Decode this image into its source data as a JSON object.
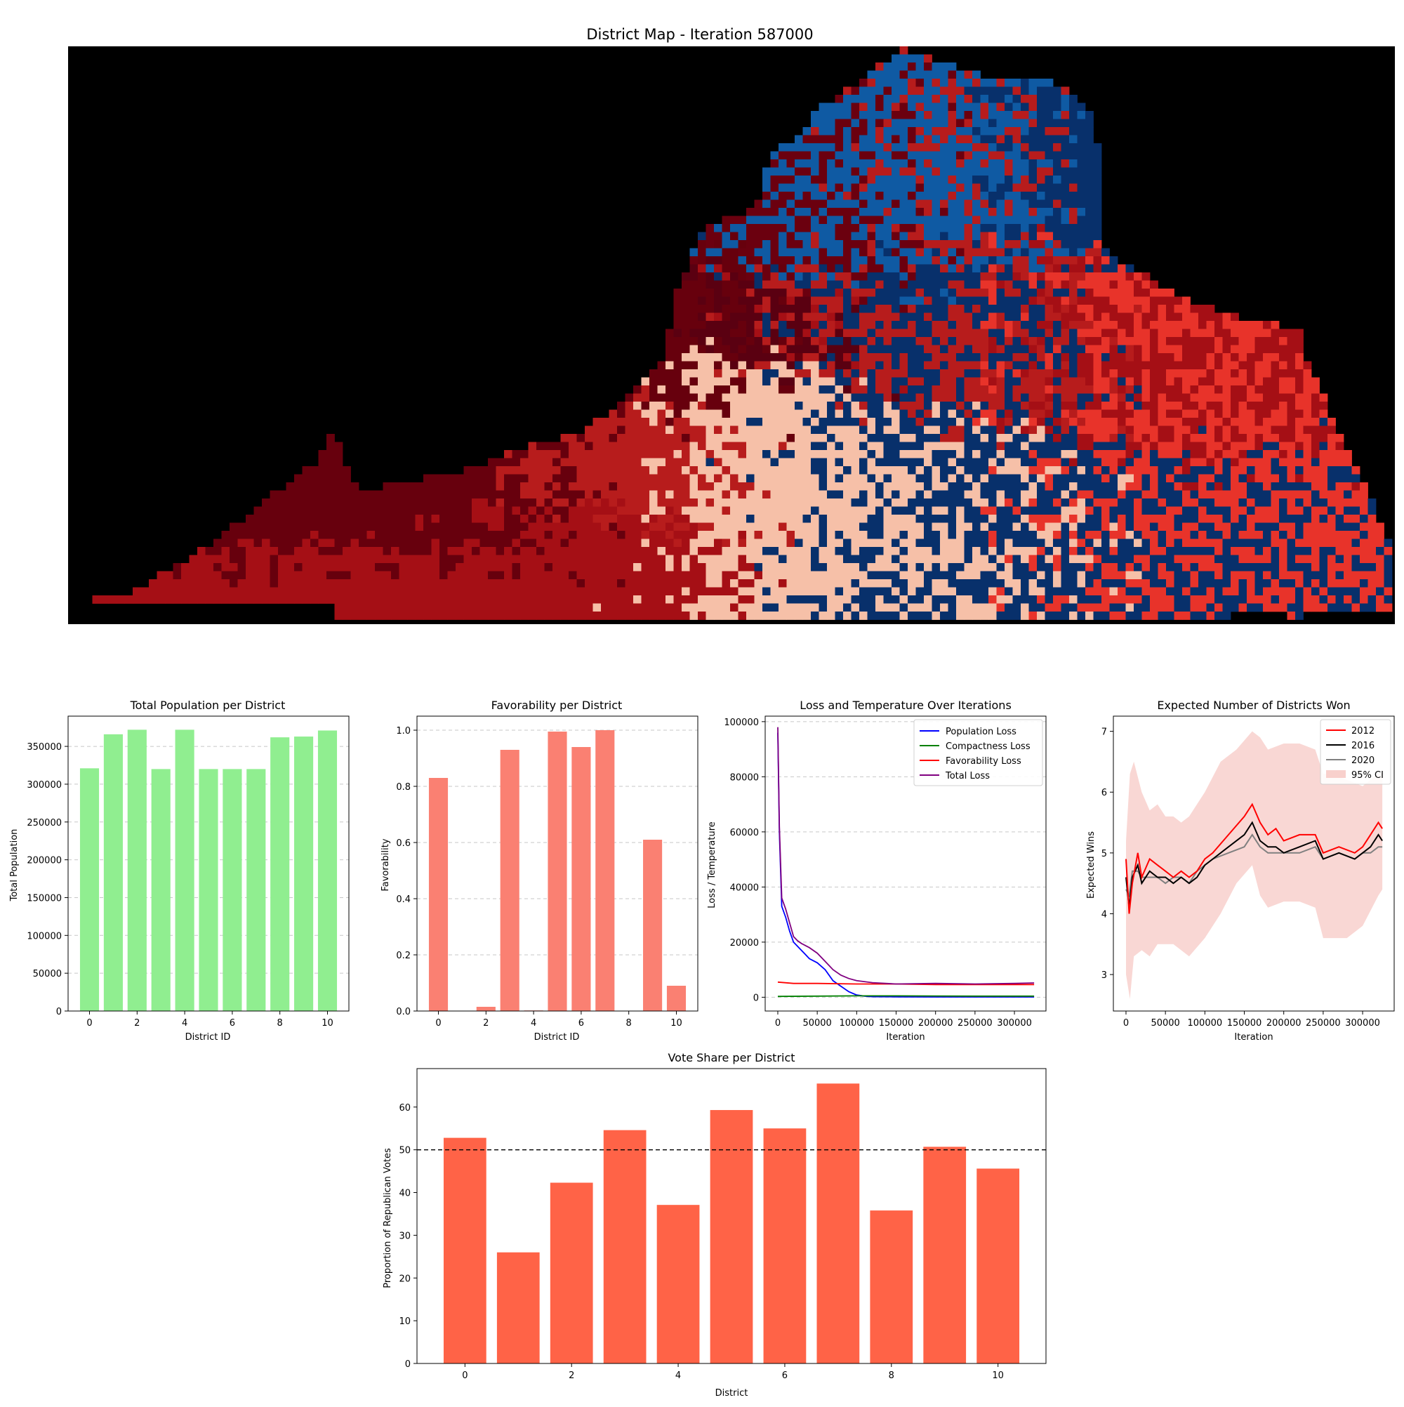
{
  "chart_data": [
    {
      "id": "map",
      "type": "heatmap",
      "title": "District Map - Iteration 587000",
      "district_colors": [
        "#67000d",
        "#a50f15",
        "#f6c0a8",
        "#08306b",
        "#0f5aa3",
        "#e8332a",
        "#6b000f",
        "#b71c1c",
        "#08306b",
        "#5a0011",
        "#8e0d16"
      ]
    },
    {
      "id": "population",
      "type": "bar",
      "title": "Total Population per District",
      "xlabel": "District ID",
      "ylabel": "Total Population",
      "categories": [
        0,
        1,
        2,
        3,
        4,
        5,
        6,
        7,
        8,
        9,
        10
      ],
      "values": [
        321000,
        366000,
        372000,
        320000,
        372000,
        320000,
        320000,
        320000,
        362000,
        363000,
        371000
      ],
      "xlim": [
        -0.9,
        10.9
      ],
      "ylim": [
        0,
        390000
      ],
      "yticks": [
        0,
        50000,
        100000,
        150000,
        200000,
        250000,
        300000,
        350000
      ],
      "xticks": [
        0,
        2,
        4,
        6,
        8,
        10
      ],
      "color": "#90ee90",
      "grid": true
    },
    {
      "id": "favorability",
      "type": "bar",
      "title": "Favorability per District",
      "xlabel": "District ID",
      "ylabel": "Favorability",
      "categories": [
        0,
        1,
        2,
        3,
        4,
        5,
        6,
        7,
        8,
        9,
        10
      ],
      "values": [
        0.83,
        0.0,
        0.015,
        0.93,
        0.002,
        0.995,
        0.94,
        1.0,
        0.0,
        0.61,
        0.09
      ],
      "xlim": [
        -0.9,
        10.9
      ],
      "ylim": [
        0,
        1.05
      ],
      "yticks": [
        0.0,
        0.2,
        0.4,
        0.6,
        0.8,
        1.0
      ],
      "xticks": [
        0,
        2,
        4,
        6,
        8,
        10
      ],
      "color": "#fa8072",
      "grid": true
    },
    {
      "id": "loss",
      "type": "line",
      "title": "Loss and Temperature Over Iterations",
      "xlabel": "Iteration",
      "ylabel": "Loss / Temperature",
      "xlim": [
        -16000,
        340000
      ],
      "ylim": [
        -5000,
        102000
      ],
      "xticks": [
        0,
        50000,
        100000,
        150000,
        200000,
        250000,
        300000
      ],
      "yticks": [
        0,
        20000,
        40000,
        60000,
        80000,
        100000
      ],
      "legend": "top-right",
      "grid": true,
      "series": [
        {
          "name": "Population Loss",
          "color": "#0000ff",
          "x": [
            0,
            2000,
            5000,
            10000,
            15000,
            20000,
            30000,
            40000,
            50000,
            60000,
            70000,
            80000,
            90000,
            100000,
            110000,
            120000,
            150000,
            200000,
            250000,
            300000,
            325000
          ],
          "y": [
            96000,
            60000,
            33000,
            29000,
            24000,
            20000,
            17000,
            14000,
            12500,
            10000,
            6000,
            4000,
            2000,
            800,
            400,
            200,
            150,
            100,
            100,
            100,
            100
          ]
        },
        {
          "name": "Compactness Loss",
          "color": "#008000",
          "x": [
            0,
            50000,
            100000,
            150000,
            200000,
            250000,
            300000,
            325000
          ],
          "y": [
            300,
            400,
            500,
            500,
            450,
            400,
            400,
            400
          ]
        },
        {
          "name": "Favorability Loss",
          "color": "#ff0000",
          "x": [
            0,
            20000,
            50000,
            100000,
            150000,
            200000,
            250000,
            300000,
            325000
          ],
          "y": [
            5500,
            5000,
            5000,
            4800,
            4800,
            4600,
            4600,
            4600,
            4600
          ]
        },
        {
          "name": "Total Loss",
          "color": "#800080",
          "x": [
            0,
            2000,
            5000,
            10000,
            20000,
            25000,
            30000,
            40000,
            50000,
            60000,
            70000,
            80000,
            90000,
            100000,
            120000,
            150000,
            200000,
            250000,
            300000,
            325000
          ],
          "y": [
            98000,
            62000,
            36000,
            32000,
            22000,
            20500,
            19500,
            18000,
            16000,
            13000,
            10000,
            8000,
            6800,
            6000,
            5300,
            4800,
            5000,
            4800,
            5000,
            5200
          ]
        }
      ]
    },
    {
      "id": "expected",
      "type": "line",
      "title": "Expected Number of Districts Won",
      "xlabel": "Iteration",
      "ylabel": "Expected Wins",
      "xlim": [
        -16000,
        340000
      ],
      "ylim": [
        2.4,
        7.25
      ],
      "xticks": [
        0,
        50000,
        100000,
        150000,
        200000,
        250000,
        300000
      ],
      "yticks": [
        3,
        4,
        5,
        6,
        7
      ],
      "legend": "top-right",
      "grid": false,
      "ci_name": "95% CI",
      "ci_color": "#f8d0cc",
      "ci_x": [
        0,
        5000,
        10000,
        20000,
        30000,
        40000,
        50000,
        60000,
        70000,
        80000,
        100000,
        120000,
        140000,
        160000,
        170000,
        180000,
        200000,
        220000,
        240000,
        250000,
        260000,
        280000,
        300000,
        320000,
        325000
      ],
      "ci_upper": [
        5.2,
        6.3,
        6.5,
        6.0,
        5.7,
        5.8,
        5.6,
        5.6,
        5.5,
        5.6,
        6.0,
        6.5,
        6.7,
        7.0,
        6.9,
        6.7,
        6.8,
        6.8,
        6.7,
        6.3,
        6.3,
        6.2,
        6.1,
        6.3,
        6.3
      ],
      "ci_lower": [
        3.0,
        2.6,
        3.3,
        3.4,
        3.3,
        3.5,
        3.5,
        3.5,
        3.4,
        3.3,
        3.6,
        4.0,
        4.5,
        4.8,
        4.3,
        4.1,
        4.2,
        4.2,
        4.1,
        3.6,
        3.6,
        3.6,
        3.8,
        4.3,
        4.4
      ],
      "series": [
        {
          "name": "2012",
          "color": "#ff0000",
          "x": [
            0,
            4000,
            8000,
            15000,
            20000,
            30000,
            40000,
            50000,
            60000,
            70000,
            80000,
            90000,
            100000,
            110000,
            130000,
            150000,
            160000,
            170000,
            180000,
            190000,
            200000,
            220000,
            240000,
            250000,
            270000,
            290000,
            300000,
            310000,
            320000,
            325000
          ],
          "y": [
            4.9,
            4.0,
            4.5,
            5.0,
            4.6,
            4.9,
            4.8,
            4.7,
            4.6,
            4.7,
            4.6,
            4.7,
            4.9,
            5.0,
            5.3,
            5.6,
            5.8,
            5.5,
            5.3,
            5.4,
            5.2,
            5.3,
            5.3,
            5.0,
            5.1,
            5.0,
            5.1,
            5.3,
            5.5,
            5.4
          ]
        },
        {
          "name": "2016",
          "color": "#000000",
          "x": [
            0,
            4000,
            8000,
            15000,
            20000,
            30000,
            40000,
            50000,
            60000,
            70000,
            80000,
            90000,
            100000,
            110000,
            130000,
            150000,
            160000,
            170000,
            180000,
            190000,
            200000,
            220000,
            240000,
            250000,
            270000,
            290000,
            300000,
            310000,
            320000,
            325000
          ],
          "y": [
            4.6,
            4.1,
            4.6,
            4.8,
            4.5,
            4.7,
            4.6,
            4.6,
            4.5,
            4.6,
            4.5,
            4.6,
            4.8,
            4.9,
            5.1,
            5.3,
            5.5,
            5.2,
            5.1,
            5.1,
            5.0,
            5.1,
            5.2,
            4.9,
            5.0,
            4.9,
            5.0,
            5.1,
            5.3,
            5.2
          ]
        },
        {
          "name": "2020",
          "color": "#808080",
          "x": [
            0,
            4000,
            8000,
            15000,
            20000,
            30000,
            40000,
            50000,
            60000,
            70000,
            80000,
            90000,
            100000,
            110000,
            130000,
            150000,
            160000,
            170000,
            180000,
            190000,
            200000,
            220000,
            240000,
            250000,
            270000,
            290000,
            300000,
            310000,
            320000,
            325000
          ],
          "y": [
            4.4,
            4.3,
            4.7,
            4.7,
            4.6,
            4.6,
            4.6,
            4.5,
            4.6,
            4.6,
            4.5,
            4.7,
            4.8,
            4.9,
            5.0,
            5.1,
            5.3,
            5.1,
            5.0,
            5.0,
            5.0,
            5.0,
            5.1,
            4.9,
            5.0,
            4.9,
            5.0,
            5.0,
            5.1,
            5.1
          ]
        }
      ]
    },
    {
      "id": "voteshare",
      "type": "bar",
      "title": "Vote Share per District",
      "xlabel": "District",
      "ylabel": "Proportion of Republican Votes",
      "categories": [
        0,
        1,
        2,
        3,
        4,
        5,
        6,
        7,
        8,
        9,
        10
      ],
      "values": [
        52.8,
        26.0,
        42.3,
        54.6,
        37.1,
        59.3,
        55.0,
        65.5,
        35.8,
        50.7,
        45.6
      ],
      "xlim": [
        -0.9,
        10.9
      ],
      "ylim": [
        0,
        69
      ],
      "yticks": [
        0,
        10,
        20,
        30,
        40,
        50,
        60
      ],
      "xticks": [
        0,
        2,
        4,
        6,
        8,
        10
      ],
      "color": "#ff6347",
      "reference_line": 50,
      "grid": false
    }
  ]
}
